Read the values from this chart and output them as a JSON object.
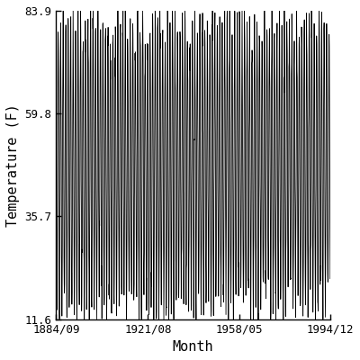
{
  "title": "",
  "xlabel": "Month",
  "ylabel": "Temperature (F)",
  "xlim_start_year": 1884,
  "xlim_start_month": 9,
  "xlim_end_year": 1994,
  "xlim_end_month": 12,
  "ylim": [
    11.6,
    83.9
  ],
  "yticks": [
    11.6,
    35.7,
    59.8,
    83.9
  ],
  "xtick_labels": [
    "1884/09",
    "1921/08",
    "1958/05",
    "1994/12"
  ],
  "xtick_years": [
    1884,
    1921,
    1958,
    1994
  ],
  "xtick_months": [
    9,
    8,
    5,
    12
  ],
  "line_color": "#000000",
  "line_width": 0.6,
  "bg_color": "#ffffff",
  "mean_temp": 47.75,
  "amplitude": 33.0,
  "noise_std": 4.0,
  "random_seed": 42
}
